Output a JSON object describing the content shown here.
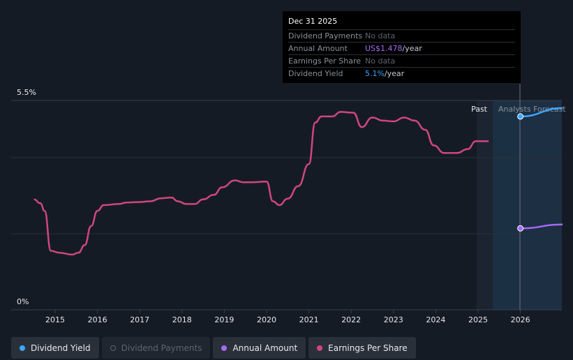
{
  "chart_data": {
    "type": "line",
    "x_ticks": [
      "2015",
      "2016",
      "2017",
      "2018",
      "2019",
      "2020",
      "2021",
      "2022",
      "2023",
      "2024",
      "2025",
      "2026"
    ],
    "y_ticks": [
      "0%",
      "5.5%"
    ],
    "ylim": [
      0,
      5.5
    ],
    "grid": true,
    "region_labels": {
      "past": "Past",
      "forecast": "Analysts Forecast"
    },
    "series": [
      {
        "name": "Earnings Per Share",
        "color": "#d0467f",
        "points": [
          [
            2014.5,
            2.9
          ],
          [
            2014.65,
            2.8
          ],
          [
            2014.75,
            2.6
          ],
          [
            2014.9,
            1.55
          ],
          [
            2015.1,
            1.5
          ],
          [
            2015.4,
            1.45
          ],
          [
            2015.55,
            1.5
          ],
          [
            2015.7,
            1.7
          ],
          [
            2015.85,
            2.2
          ],
          [
            2016.0,
            2.6
          ],
          [
            2016.15,
            2.75
          ],
          [
            2016.5,
            2.78
          ],
          [
            2016.7,
            2.82
          ],
          [
            2017.0,
            2.83
          ],
          [
            2017.25,
            2.85
          ],
          [
            2017.5,
            2.93
          ],
          [
            2017.75,
            2.95
          ],
          [
            2017.9,
            2.85
          ],
          [
            2018.1,
            2.78
          ],
          [
            2018.3,
            2.78
          ],
          [
            2018.5,
            2.9
          ],
          [
            2018.75,
            3.02
          ],
          [
            2018.95,
            3.22
          ],
          [
            2019.25,
            3.4
          ],
          [
            2019.45,
            3.35
          ],
          [
            2019.65,
            3.35
          ],
          [
            2020.0,
            3.37
          ],
          [
            2020.15,
            2.85
          ],
          [
            2020.3,
            2.75
          ],
          [
            2020.5,
            2.92
          ],
          [
            2020.75,
            3.25
          ],
          [
            2021.0,
            3.83
          ],
          [
            2021.15,
            4.92
          ],
          [
            2021.3,
            5.08
          ],
          [
            2021.55,
            5.08
          ],
          [
            2021.75,
            5.2
          ],
          [
            2022.05,
            5.18
          ],
          [
            2022.25,
            4.8
          ],
          [
            2022.5,
            5.05
          ],
          [
            2022.75,
            4.97
          ],
          [
            2023.0,
            4.95
          ],
          [
            2023.25,
            5.05
          ],
          [
            2023.5,
            4.97
          ],
          [
            2023.75,
            4.73
          ],
          [
            2023.95,
            4.32
          ],
          [
            2024.2,
            4.12
          ],
          [
            2024.5,
            4.12
          ],
          [
            2024.75,
            4.22
          ],
          [
            2024.95,
            4.43
          ],
          [
            2025.25,
            4.43
          ]
        ]
      },
      {
        "name": "Dividend Yield",
        "color": "#3ea6ff",
        "points": [
          [
            2026.0,
            5.08
          ],
          [
            2027.0,
            5.3
          ]
        ]
      },
      {
        "name": "Annual Amount",
        "color": "#a569f5",
        "points": [
          [
            2026.0,
            2.14
          ],
          [
            2027.0,
            2.24
          ]
        ]
      }
    ]
  },
  "tooltip": {
    "date": "Dec 31 2025",
    "rows": [
      {
        "label": "Dividend Payments",
        "value": "No data"
      },
      {
        "label": "Annual Amount",
        "value": "US$1.478",
        "unit": "/year"
      },
      {
        "label": "Earnings Per Share",
        "value": "No data"
      },
      {
        "label": "Dividend Yield",
        "value": "5.1%",
        "unit": "/year"
      }
    ]
  },
  "legend": [
    {
      "label": "Dividend Yield",
      "color": "#3ea6ff",
      "active": true
    },
    {
      "label": "Dividend Payments",
      "color": "#5d646e",
      "active": false
    },
    {
      "label": "Annual Amount",
      "color": "#a569f5",
      "active": true
    },
    {
      "label": "Earnings Per Share",
      "color": "#d0467f",
      "active": true
    }
  ]
}
